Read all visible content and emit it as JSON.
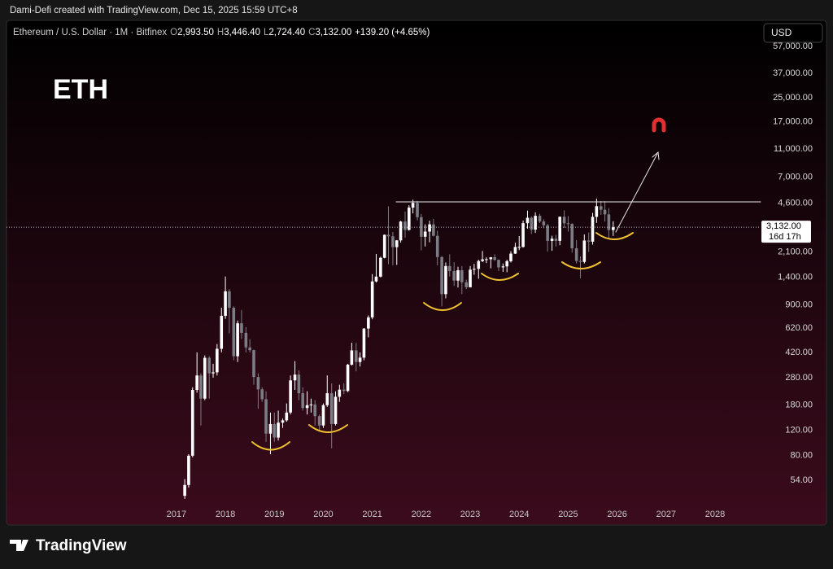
{
  "header": {
    "credit": "Dami-Defi created with TradingView.com, Dec 15, 2025 15:59 UTC+8"
  },
  "legend": {
    "symbol": "Ethereum / U.S. Dollar · 1M · Bitfinex",
    "o_key": "O",
    "o": "2,993.50",
    "h_key": "H",
    "h": "3,446.40",
    "l_key": "L",
    "l": "2,724.40",
    "c_key": "C",
    "c": "3,132.00",
    "change": "+139.20 (+4.65%)"
  },
  "chart_data": {
    "type": "candlestick",
    "title": "ETH",
    "currency": "USD",
    "log_scale": true,
    "up_color": "#ffffff",
    "down_color": "#7c7c85",
    "x": [
      2017.17,
      2017.25,
      2017.33,
      2017.42,
      2017.5,
      2017.58,
      2017.67,
      2017.75,
      2017.83,
      2017.92,
      2018.0,
      2018.08,
      2018.17,
      2018.25,
      2018.33,
      2018.42,
      2018.5,
      2018.58,
      2018.67,
      2018.75,
      2018.83,
      2018.92,
      2019.0,
      2019.08,
      2019.17,
      2019.25,
      2019.33,
      2019.42,
      2019.5,
      2019.58,
      2019.67,
      2019.75,
      2019.83,
      2019.92,
      2020.0,
      2020.08,
      2020.17,
      2020.25,
      2020.33,
      2020.42,
      2020.5,
      2020.58,
      2020.67,
      2020.75,
      2020.83,
      2020.92,
      2021.0,
      2021.08,
      2021.17,
      2021.25,
      2021.33,
      2021.42,
      2021.5,
      2021.58,
      2021.67,
      2021.75,
      2021.83,
      2021.92,
      2022.0,
      2022.08,
      2022.17,
      2022.25,
      2022.33,
      2022.42,
      2022.5,
      2022.58,
      2022.67,
      2022.75,
      2022.83,
      2022.92,
      2023.0,
      2023.08,
      2023.17,
      2023.25,
      2023.33,
      2023.42,
      2023.5,
      2023.58,
      2023.67,
      2023.75,
      2023.83,
      2023.92,
      2024.0,
      2024.08,
      2024.17,
      2024.25,
      2024.33,
      2024.42,
      2024.5,
      2024.58,
      2024.67,
      2024.75,
      2024.83,
      2024.92,
      2025.0,
      2025.08,
      2025.17,
      2025.25,
      2025.33,
      2025.42,
      2025.5,
      2025.58,
      2025.67,
      2025.75,
      2025.83,
      2025.92
    ],
    "open": [
      42,
      50,
      80,
      230,
      290,
      200,
      385,
      300,
      305,
      445,
      755,
      1120,
      860,
      395,
      670,
      575,
      455,
      435,
      283,
      232,
      198,
      114,
      133,
      107,
      136,
      141,
      160,
      268,
      294,
      218,
      172,
      180,
      182,
      151,
      130,
      180,
      218,
      133,
      206,
      231,
      226,
      345,
      434,
      360,
      386,
      616,
      737,
      1312,
      1418,
      1918,
      2773,
      2707,
      2275,
      2536,
      3430,
      3000,
      4288,
      4630,
      3680,
      2690,
      2920,
      3280,
      2730,
      1940,
      1070,
      1680,
      1550,
      1330,
      1570,
      1295,
      1196,
      1585,
      1605,
      1820,
      1870,
      1875,
      1935,
      1855,
      1645,
      1670,
      1815,
      2050,
      2280,
      2283,
      3340,
      3645,
      3015,
      3760,
      3435,
      3230,
      2515,
      2605,
      2518,
      3705,
      3335,
      3300,
      2235,
      1822,
      1795,
      2530,
      2485,
      3700,
      4390,
      4145,
      3850,
      2993.5
    ],
    "high": [
      55,
      82,
      240,
      420,
      300,
      400,
      395,
      350,
      480,
      860,
      1420,
      1160,
      880,
      700,
      830,
      630,
      520,
      440,
      300,
      240,
      225,
      160,
      160,
      165,
      145,
      185,
      290,
      365,
      315,
      240,
      225,
      200,
      195,
      155,
      185,
      290,
      255,
      225,
      250,
      255,
      350,
      490,
      490,
      420,
      620,
      760,
      1475,
      2040,
      1950,
      2790,
      4380,
      2900,
      2550,
      3470,
      4030,
      4460,
      4870,
      4780,
      3880,
      3280,
      3480,
      3580,
      2960,
      1970,
      1780,
      2030,
      1790,
      1660,
      1680,
      1350,
      1680,
      1740,
      1860,
      2140,
      1930,
      1940,
      2030,
      1870,
      1750,
      1860,
      2130,
      2440,
      2720,
      3490,
      4090,
      3730,
      3980,
      3890,
      3560,
      3300,
      2730,
      2770,
      3720,
      4110,
      3740,
      3340,
      2550,
      1960,
      2790,
      2880,
      3940,
      4960,
      4770,
      4760,
      4250,
      3446.4
    ],
    "low": [
      40,
      48,
      78,
      220,
      130,
      195,
      200,
      280,
      290,
      420,
      720,
      570,
      370,
      360,
      520,
      420,
      420,
      250,
      170,
      190,
      100,
      82,
      100,
      102,
      125,
      138,
      155,
      230,
      195,
      165,
      155,
      160,
      130,
      118,
      125,
      175,
      90,
      130,
      190,
      215,
      222,
      340,
      310,
      335,
      370,
      535,
      715,
      1290,
      1400,
      1900,
      1730,
      1700,
      1710,
      2450,
      2650,
      2970,
      3910,
      3500,
      2160,
      2300,
      2460,
      2700,
      1700,
      880,
      1000,
      1420,
      1220,
      1190,
      1070,
      1160,
      1190,
      1460,
      1370,
      1790,
      1760,
      1620,
      1830,
      1550,
      1530,
      1520,
      1780,
      2040,
      2170,
      2260,
      3060,
      2810,
      2860,
      3350,
      3080,
      2120,
      2150,
      2300,
      2350,
      3100,
      2920,
      2080,
      1750,
      1380,
      1750,
      2110,
      2370,
      3360,
      3820,
      3430,
      2620,
      2724.4
    ],
    "close": [
      50,
      80,
      230,
      290,
      200,
      385,
      300,
      305,
      445,
      755,
      1120,
      860,
      395,
      670,
      575,
      455,
      435,
      283,
      232,
      198,
      114,
      133,
      107,
      136,
      141,
      160,
      268,
      294,
      218,
      172,
      180,
      182,
      151,
      130,
      180,
      218,
      133,
      206,
      231,
      226,
      345,
      434,
      360,
      386,
      616,
      737,
      1312,
      1418,
      1918,
      2773,
      2707,
      2275,
      2536,
      3430,
      3000,
      4288,
      4630,
      3680,
      2690,
      2920,
      3280,
      2730,
      1940,
      1070,
      1680,
      1550,
      1330,
      1570,
      1295,
      1196,
      1585,
      1605,
      1820,
      1870,
      1875,
      1935,
      1855,
      1645,
      1670,
      1815,
      2050,
      2280,
      2283,
      3340,
      3645,
      3015,
      3760,
      3435,
      3230,
      2515,
      2605,
      2518,
      3705,
      3335,
      3300,
      2235,
      1822,
      1795,
      2530,
      2485,
      3700,
      4390,
      4145,
      3850,
      2993.5,
      3132
    ],
    "xlim": [
      2013.53,
      2028.93
    ],
    "xticks": [
      2017,
      2018,
      2019,
      2020,
      2021,
      2022,
      2023,
      2024,
      2025,
      2026,
      2027,
      2028
    ],
    "ylim": [
      38.9,
      86700
    ],
    "yticks": [
      {
        "value": 54,
        "label": "54.00"
      },
      {
        "value": 80,
        "label": "80.00"
      },
      {
        "value": 120,
        "label": "120.00"
      },
      {
        "value": 180,
        "label": "180.00"
      },
      {
        "value": 280,
        "label": "280.00"
      },
      {
        "value": 420,
        "label": "420.00"
      },
      {
        "value": 620,
        "label": "620.00"
      },
      {
        "value": 900,
        "label": "900.00"
      },
      {
        "value": 1400,
        "label": "1,400.00"
      },
      {
        "value": 2100,
        "label": "2,100.00"
      },
      {
        "value": 4600,
        "label": "4,600.00"
      },
      {
        "value": 7000,
        "label": "7,000.00"
      },
      {
        "value": 11000,
        "label": "11,000.00"
      },
      {
        "value": 17000,
        "label": "17,000.00"
      },
      {
        "value": 25000,
        "label": "25,000.00"
      },
      {
        "value": 37000,
        "label": "37,000.00"
      },
      {
        "value": 57000,
        "label": "57,000.00"
      }
    ],
    "last_price": {
      "value": 3132,
      "label": "3,132.00"
    },
    "countdown": "16d 17h"
  },
  "footer": {
    "brand": "TradingView"
  }
}
